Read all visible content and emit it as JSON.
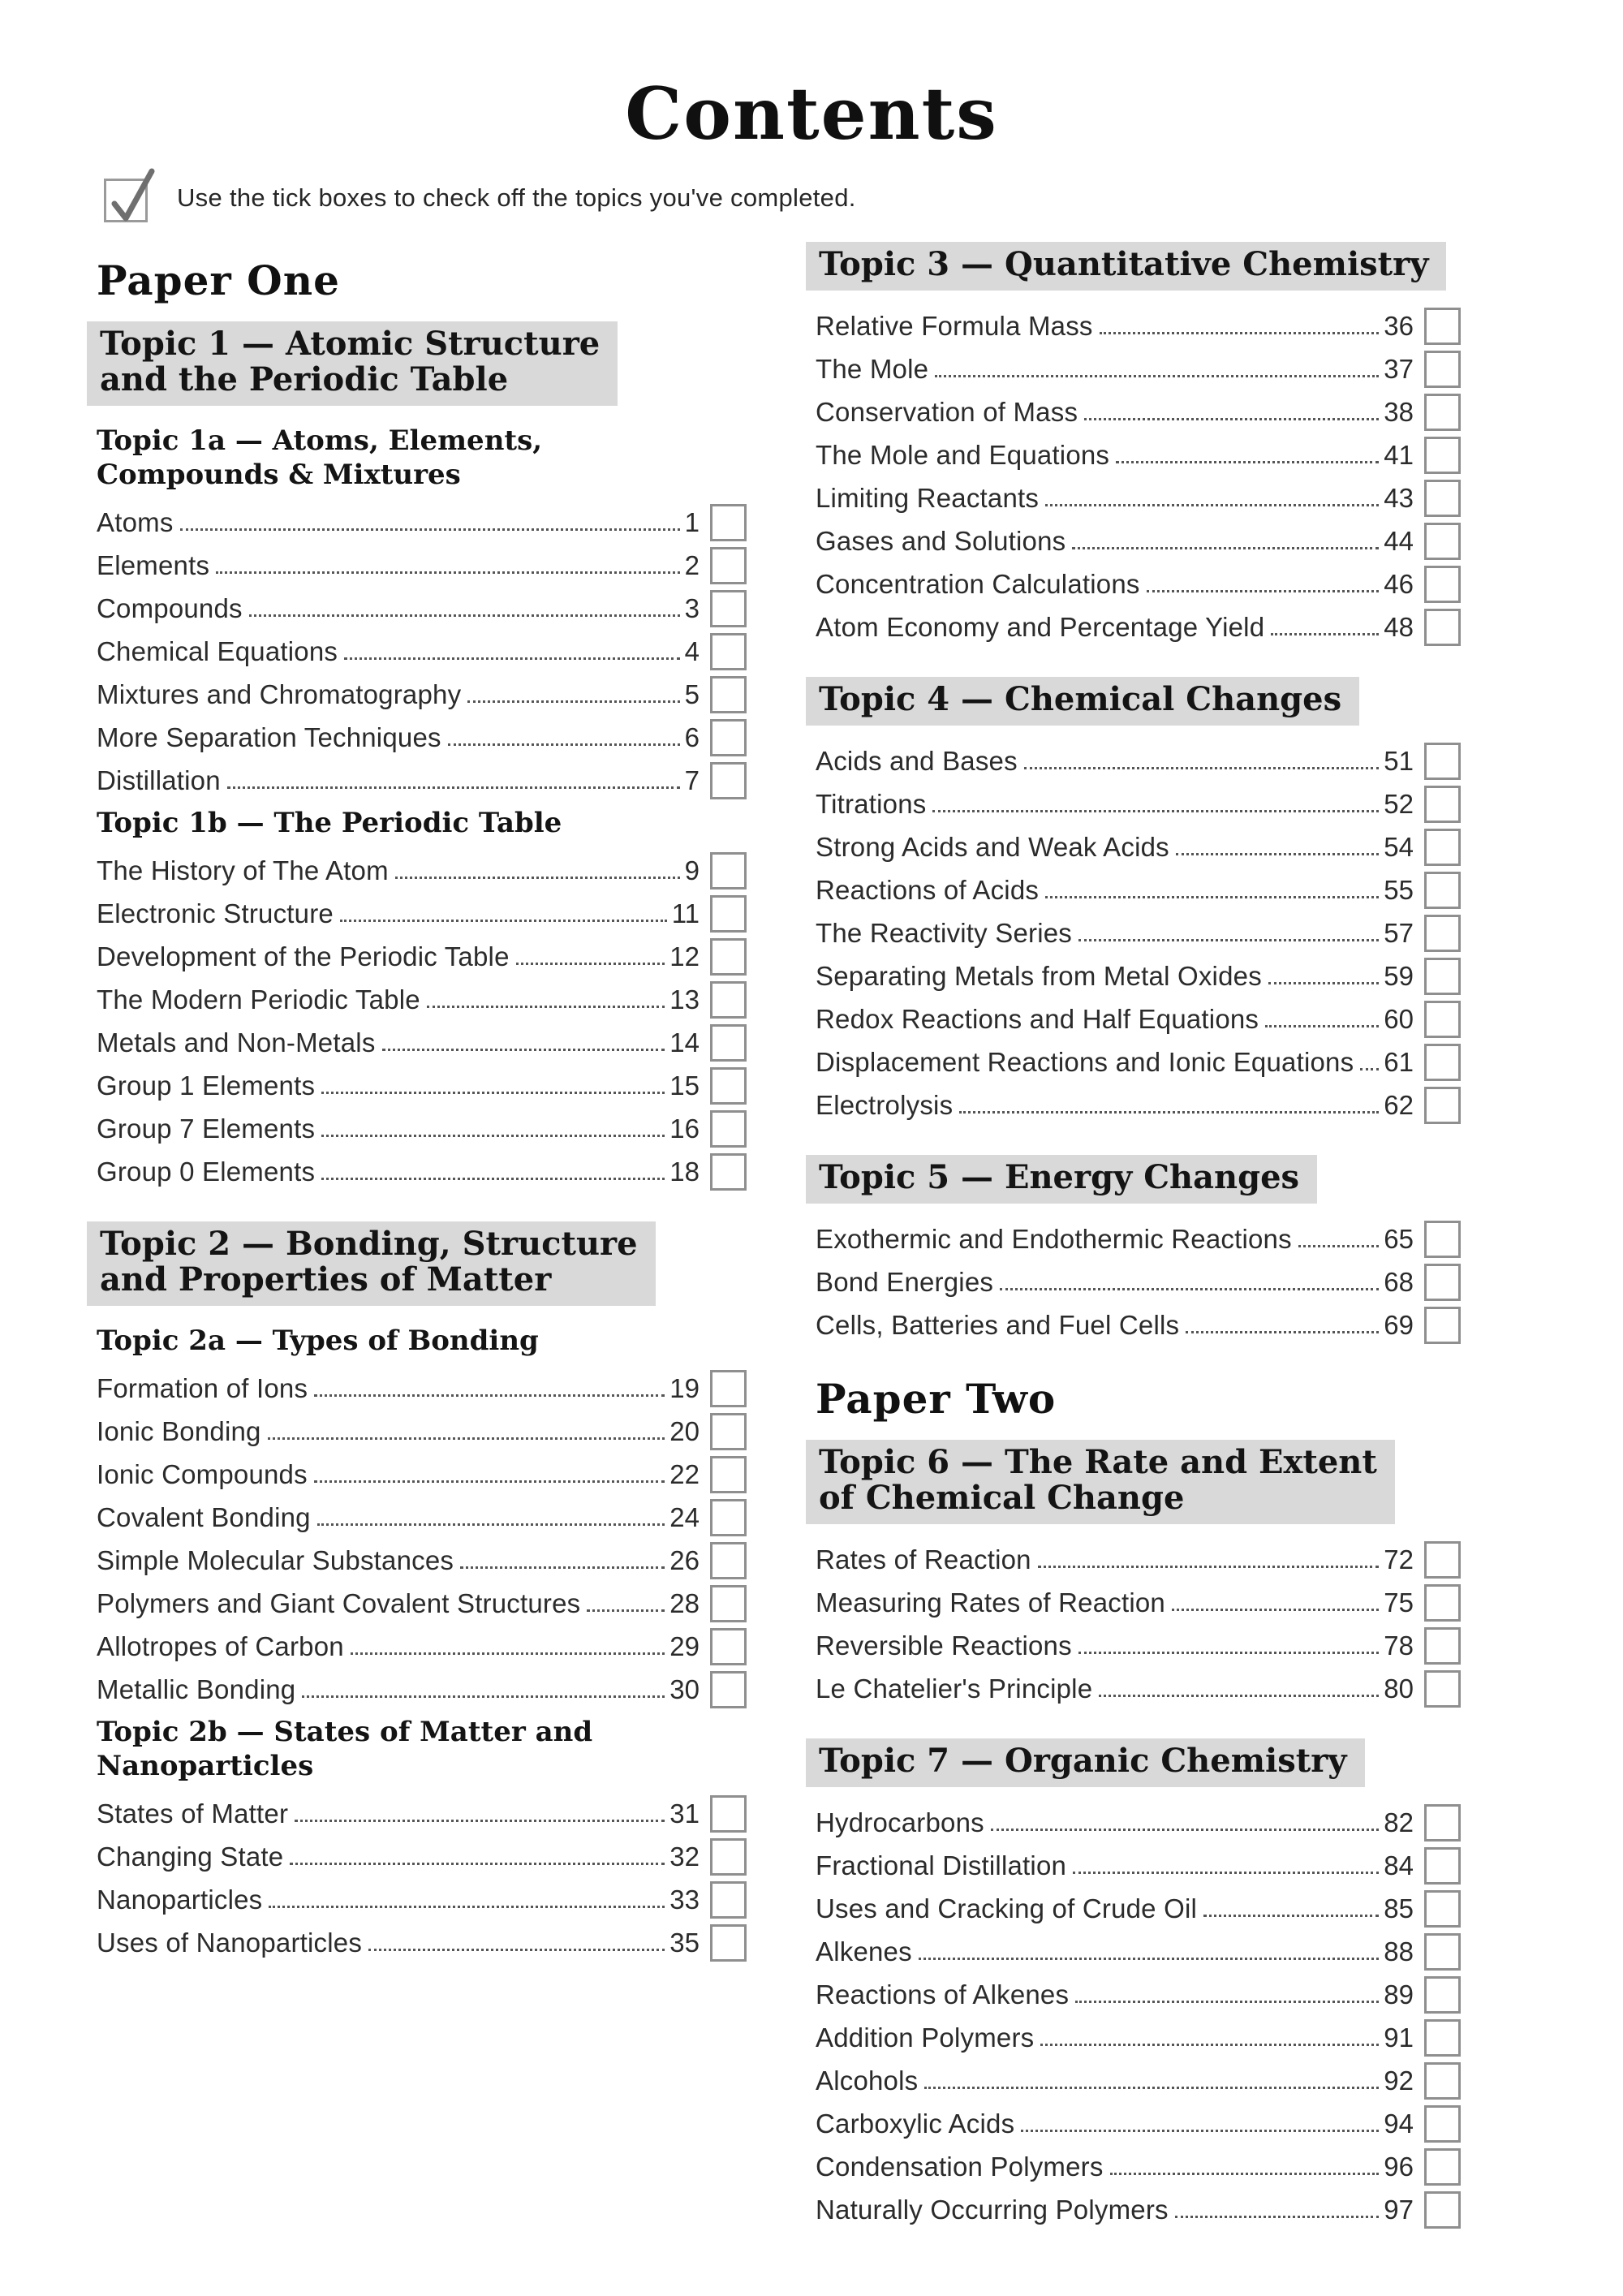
{
  "header": {
    "title": "Contents",
    "instruction": "Use the tick boxes to check off the topics you've completed."
  },
  "colors": {
    "topic_heading_bg": "#d9d9d9",
    "checkbox_border": "#8f8f8f"
  },
  "columns": [
    {
      "blocks": [
        {
          "kind": "paper",
          "text": "Paper One"
        },
        {
          "kind": "topic",
          "lines": [
            "Topic 1 — Atomic Structure",
            "and the Periodic Table"
          ]
        },
        {
          "kind": "subtopic",
          "lines": [
            "Topic 1a — Atoms, Elements,",
            "Compounds & Mixtures"
          ]
        },
        {
          "kind": "entries",
          "items": [
            {
              "label": "Atoms",
              "page": "1"
            },
            {
              "label": "Elements",
              "page": "2"
            },
            {
              "label": "Compounds",
              "page": "3"
            },
            {
              "label": "Chemical Equations",
              "page": "4"
            },
            {
              "label": "Mixtures and Chromatography",
              "page": "5"
            },
            {
              "label": "More Separation Techniques",
              "page": "6"
            },
            {
              "label": "Distillation",
              "page": "7"
            }
          ]
        },
        {
          "kind": "subtopic",
          "lines": [
            "Topic 1b — The Periodic Table"
          ]
        },
        {
          "kind": "entries",
          "items": [
            {
              "label": "The History of The Atom",
              "page": "9"
            },
            {
              "label": "Electronic Structure",
              "page": "11"
            },
            {
              "label": "Development of the Periodic Table",
              "page": "12"
            },
            {
              "label": "The Modern Periodic Table",
              "page": "13"
            },
            {
              "label": "Metals and Non-Metals",
              "page": "14"
            },
            {
              "label": "Group 1 Elements",
              "page": "15"
            },
            {
              "label": "Group 7 Elements",
              "page": "16"
            },
            {
              "label": "Group 0 Elements",
              "page": "18"
            }
          ]
        },
        {
          "kind": "topic",
          "lines": [
            "Topic 2 — Bonding, Structure",
            "and Properties of Matter"
          ]
        },
        {
          "kind": "subtopic",
          "lines": [
            "Topic 2a — Types of Bonding"
          ]
        },
        {
          "kind": "entries",
          "items": [
            {
              "label": "Formation of Ions",
              "page": "19"
            },
            {
              "label": "Ionic Bonding",
              "page": "20"
            },
            {
              "label": "Ionic Compounds",
              "page": "22"
            },
            {
              "label": "Covalent Bonding",
              "page": "24"
            },
            {
              "label": "Simple Molecular Substances",
              "page": "26"
            },
            {
              "label": "Polymers and Giant Covalent Structures",
              "page": "28"
            },
            {
              "label": "Allotropes of Carbon",
              "page": "29"
            },
            {
              "label": "Metallic Bonding",
              "page": "30"
            }
          ]
        },
        {
          "kind": "subtopic",
          "lines": [
            "Topic 2b — States of Matter and Nanoparticles"
          ]
        },
        {
          "kind": "entries",
          "items": [
            {
              "label": "States of Matter",
              "page": "31"
            },
            {
              "label": "Changing State",
              "page": "32"
            },
            {
              "label": "Nanoparticles",
              "page": "33"
            },
            {
              "label": "Uses of Nanoparticles",
              "page": "35"
            }
          ]
        }
      ]
    },
    {
      "blocks": [
        {
          "kind": "topic",
          "lines": [
            "Topic 3 — Quantitative Chemistry"
          ]
        },
        {
          "kind": "entries",
          "items": [
            {
              "label": "Relative Formula Mass",
              "page": "36"
            },
            {
              "label": "The Mole",
              "page": "37"
            },
            {
              "label": "Conservation of Mass",
              "page": "38"
            },
            {
              "label": "The Mole and Equations",
              "page": "41"
            },
            {
              "label": "Limiting Reactants",
              "page": "43"
            },
            {
              "label": "Gases and Solutions",
              "page": "44"
            },
            {
              "label": "Concentration Calculations",
              "page": "46"
            },
            {
              "label": "Atom Economy and Percentage Yield",
              "page": "48"
            }
          ]
        },
        {
          "kind": "topic",
          "lines": [
            "Topic 4 — Chemical Changes"
          ]
        },
        {
          "kind": "entries",
          "items": [
            {
              "label": "Acids and Bases",
              "page": "51"
            },
            {
              "label": "Titrations",
              "page": "52"
            },
            {
              "label": "Strong Acids and Weak Acids",
              "page": "54"
            },
            {
              "label": "Reactions of Acids",
              "page": "55"
            },
            {
              "label": "The Reactivity Series",
              "page": "57"
            },
            {
              "label": "Separating Metals from Metal Oxides",
              "page": "59"
            },
            {
              "label": "Redox Reactions and Half Equations",
              "page": "60"
            },
            {
              "label": "Displacement Reactions and Ionic Equations",
              "page": "61"
            },
            {
              "label": "Electrolysis",
              "page": "62"
            }
          ]
        },
        {
          "kind": "topic",
          "lines": [
            "Topic 5 — Energy Changes"
          ]
        },
        {
          "kind": "entries",
          "items": [
            {
              "label": "Exothermic and Endothermic Reactions",
              "page": "65"
            },
            {
              "label": "Bond Energies",
              "page": "68"
            },
            {
              "label": "Cells, Batteries and Fuel Cells",
              "page": "69"
            }
          ]
        },
        {
          "kind": "paper",
          "text": "Paper Two"
        },
        {
          "kind": "topic",
          "lines": [
            "Topic 6 — The Rate and Extent",
            "of Chemical Change"
          ]
        },
        {
          "kind": "entries",
          "items": [
            {
              "label": "Rates of Reaction",
              "page": "72"
            },
            {
              "label": "Measuring Rates of Reaction",
              "page": "75"
            },
            {
              "label": "Reversible Reactions",
              "page": "78"
            },
            {
              "label": "Le Chatelier's Principle",
              "page": "80"
            }
          ]
        },
        {
          "kind": "topic",
          "lines": [
            "Topic 7 — Organic Chemistry"
          ]
        },
        {
          "kind": "entries",
          "items": [
            {
              "label": "Hydrocarbons",
              "page": "82"
            },
            {
              "label": "Fractional Distillation",
              "page": "84"
            },
            {
              "label": "Uses and Cracking of Crude Oil",
              "page": "85"
            },
            {
              "label": "Alkenes",
              "page": "88"
            },
            {
              "label": "Reactions of Alkenes",
              "page": "89"
            },
            {
              "label": "Addition Polymers",
              "page": "91"
            },
            {
              "label": "Alcohols",
              "page": "92"
            },
            {
              "label": "Carboxylic Acids",
              "page": "94"
            },
            {
              "label": "Condensation Polymers",
              "page": "96"
            },
            {
              "label": "Naturally Occurring Polymers",
              "page": "97"
            }
          ]
        }
      ]
    }
  ]
}
